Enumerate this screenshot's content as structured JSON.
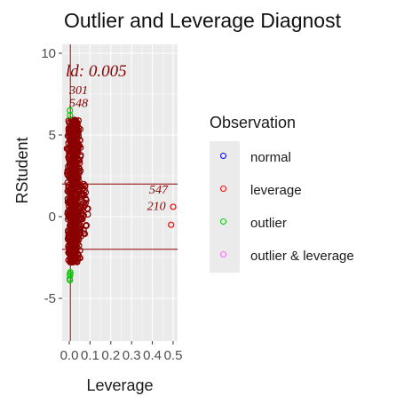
{
  "chart_data": {
    "type": "scatter",
    "title": "Outlier and Leverage Diagnost",
    "xlabel": "Leverage",
    "ylabel": "RStudent",
    "xlim": [
      0,
      0.5
    ],
    "ylim": [
      -7,
      10
    ],
    "x_ticks": [
      "0.0",
      "0.1",
      "0.2",
      "0.3",
      "0.4",
      "0.5"
    ],
    "y_ticks": [
      {
        "value": -5,
        "label": "-5"
      },
      {
        "value": 0,
        "label": "0"
      },
      {
        "value": 5,
        "label": "5"
      },
      {
        "value": 10,
        "label": "10"
      }
    ],
    "grid": true,
    "legend_position": "right",
    "threshold_annotation": "ld: 0.005",
    "reference_lines": {
      "horizontal": [
        2,
        -2
      ],
      "vertical": [
        0.005
      ]
    },
    "series": [
      {
        "name": "normal",
        "color": "#0000ff",
        "points": []
      },
      {
        "name": "leverage",
        "color": "#ff0000",
        "points": [
          [
            0.49,
            -0.5
          ],
          [
            0.5,
            0.6
          ]
        ]
      },
      {
        "name": "outlier",
        "color": "#00cc00",
        "points": [
          [
            0.003,
            -3.5
          ],
          [
            0.004,
            -3.6
          ],
          [
            0.002,
            -3.8
          ],
          [
            0.003,
            -3.9
          ],
          [
            0.005,
            -3.4
          ],
          [
            0.004,
            6.2
          ],
          [
            0.003,
            6.5
          ]
        ]
      },
      {
        "name": "outlier & leverage",
        "color": "#ff66ff",
        "points": []
      }
    ],
    "point_labels": [
      {
        "text": "547",
        "x": 0.47,
        "y": 1.4
      },
      {
        "text": "210",
        "x": 0.46,
        "y": 0.4
      },
      {
        "text": "301",
        "x": 0.0,
        "y": 7.5
      },
      {
        "text": "548",
        "x": 0.0,
        "y": 6.7
      }
    ]
  },
  "legend": {
    "title": "Observation",
    "items": [
      {
        "label": "normal",
        "color": "#0000ff"
      },
      {
        "label": "leverage",
        "color": "#ff0000"
      },
      {
        "label": "outlier",
        "color": "#00cc00"
      },
      {
        "label": "outlier & leverage",
        "color": "#ff66ff"
      }
    ]
  },
  "colors": {
    "panel_bg": "#ebebeb",
    "grid_major": "#ffffff",
    "reference_line": "#8b0000",
    "dense_points": "#8b0000"
  }
}
